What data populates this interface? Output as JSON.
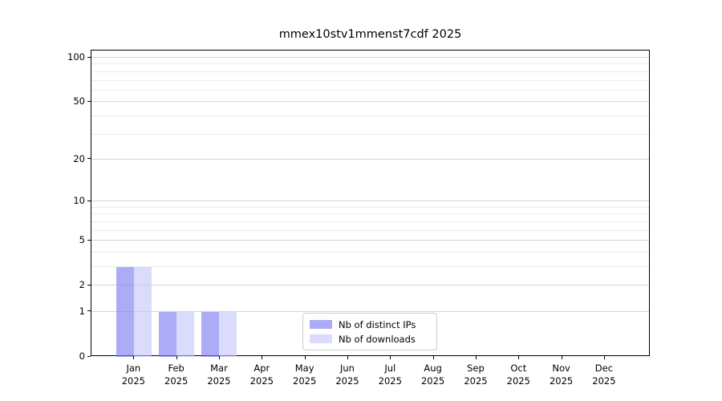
{
  "chart_data": {
    "type": "bar",
    "title": "mmex10stv1mmenst7cdf 2025",
    "xlabel": "",
    "ylabel": "",
    "categories": [
      "Jan",
      "Feb",
      "Mar",
      "Apr",
      "May",
      "Jun",
      "Jul",
      "Aug",
      "Sep",
      "Oct",
      "Nov",
      "Dec"
    ],
    "x_sub_label": "2025",
    "series": [
      {
        "name": "Nb of distinct IPs",
        "color": "rgba(128,128,241,0.66)",
        "values": [
          3,
          1,
          1,
          0,
          0,
          0,
          0,
          0,
          0,
          0,
          0,
          0
        ]
      },
      {
        "name": "Nb of downloads",
        "color": "rgba(197,197,248,0.62)",
        "values": [
          3,
          1,
          1,
          0,
          0,
          0,
          0,
          0,
          0,
          0,
          0,
          0
        ]
      }
    ],
    "y_axis": {
      "scale": "log10(value+1)",
      "major_ticks": [
        0,
        1,
        2,
        5,
        10,
        20,
        50,
        100
      ],
      "minor_gridlines": [
        3,
        4,
        6,
        7,
        8,
        9,
        30,
        40,
        60,
        70,
        80,
        90
      ],
      "range_top": 112
    },
    "grid": "horizontal",
    "legend_position": "inside-bottom-center",
    "colors": {
      "grid_major": "#d3d3d3",
      "grid_minor": "#ececec",
      "spine": "#000000",
      "background": "#ffffff"
    }
  }
}
